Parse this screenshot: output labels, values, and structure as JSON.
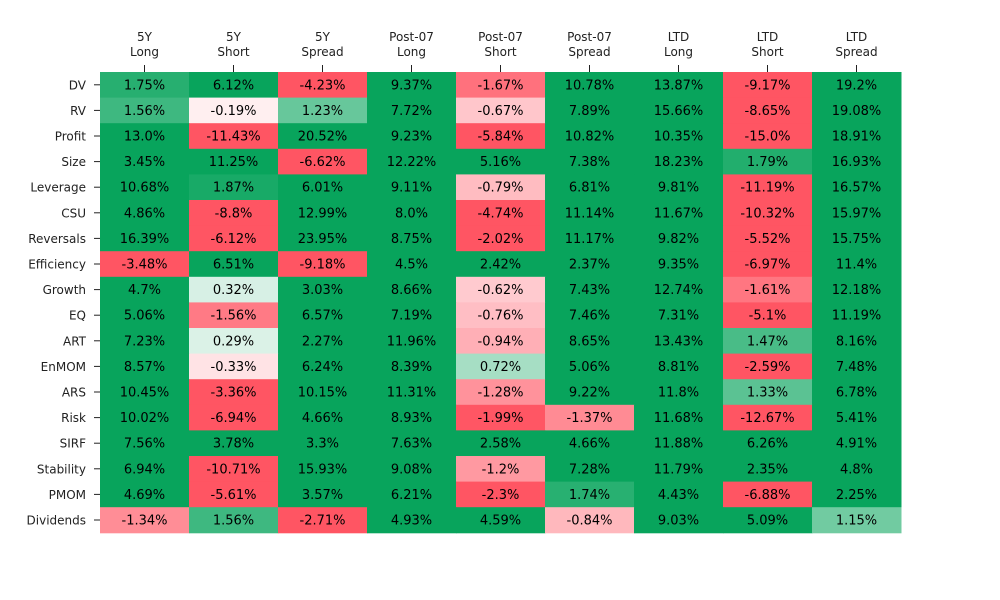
{
  "chart_data": {
    "type": "heatmap",
    "columns": [
      [
        "5Y",
        "Long"
      ],
      [
        "5Y",
        "Short"
      ],
      [
        "5Y",
        "Spread"
      ],
      [
        "Post-07",
        "Long"
      ],
      [
        "Post-07",
        "Short"
      ],
      [
        "Post-07",
        "Spread"
      ],
      [
        "LTD",
        "Long"
      ],
      [
        "LTD",
        "Short"
      ],
      [
        "LTD",
        "Spread"
      ]
    ],
    "rows": [
      "DV",
      "RV",
      "Profit",
      "Size",
      "Leverage",
      "CSU",
      "Reversals",
      "Efficiency",
      "Growth",
      "EQ",
      "ART",
      "EnMOM",
      "ARS",
      "Risk",
      "SIRF",
      "Stability",
      "PMOM",
      "Dividends"
    ],
    "values": [
      [
        1.75,
        6.12,
        -4.23,
        9.37,
        -1.67,
        10.78,
        13.87,
        -9.17,
        19.2
      ],
      [
        1.56,
        -0.19,
        1.23,
        7.72,
        -0.67,
        7.89,
        15.66,
        -8.65,
        19.08
      ],
      [
        13.0,
        -11.43,
        20.52,
        9.23,
        -5.84,
        10.82,
        10.35,
        -15.0,
        18.91
      ],
      [
        3.45,
        11.25,
        -6.62,
        12.22,
        5.16,
        7.38,
        18.23,
        1.79,
        16.93
      ],
      [
        10.68,
        1.87,
        6.01,
        9.11,
        -0.79,
        6.81,
        9.81,
        -11.19,
        16.57
      ],
      [
        4.86,
        -8.8,
        12.99,
        8.0,
        -4.74,
        11.14,
        11.67,
        -10.32,
        15.97
      ],
      [
        16.39,
        -6.12,
        23.95,
        8.75,
        -2.02,
        11.17,
        9.82,
        -5.52,
        15.75
      ],
      [
        -3.48,
        6.51,
        -9.18,
        4.5,
        2.42,
        2.37,
        9.35,
        -6.97,
        11.4
      ],
      [
        4.7,
        0.32,
        3.03,
        8.66,
        -0.62,
        7.43,
        12.74,
        -1.61,
        12.18
      ],
      [
        5.06,
        -1.56,
        6.57,
        7.19,
        -0.76,
        7.46,
        7.31,
        -5.1,
        11.19
      ],
      [
        7.23,
        0.29,
        2.27,
        11.96,
        -0.94,
        8.65,
        13.43,
        1.47,
        8.16
      ],
      [
        8.57,
        -0.33,
        6.24,
        8.39,
        0.72,
        5.06,
        8.81,
        -2.59,
        7.48
      ],
      [
        10.45,
        -3.36,
        10.15,
        11.31,
        -1.28,
        9.22,
        11.8,
        1.33,
        6.78
      ],
      [
        10.02,
        -6.94,
        4.66,
        8.93,
        -1.99,
        -1.37,
        11.68,
        -12.67,
        5.41
      ],
      [
        7.56,
        3.78,
        3.3,
        7.63,
        2.58,
        4.66,
        11.88,
        6.26,
        4.91
      ],
      [
        6.94,
        -10.71,
        15.93,
        9.08,
        -1.2,
        7.28,
        11.79,
        2.35,
        4.8
      ],
      [
        4.69,
        -5.61,
        3.57,
        6.21,
        -2.3,
        1.74,
        4.43,
        -6.88,
        2.25
      ],
      [
        -1.34,
        1.56,
        -2.71,
        4.93,
        4.59,
        -0.84,
        9.03,
        5.09,
        1.15
      ]
    ],
    "value_suffix": "%",
    "color_scale": {
      "negative": "#ff5563",
      "mid": "#ffffff",
      "positive": "#08a45c",
      "vmin": -2,
      "vmax": 2
    },
    "grid": false,
    "legend": "none"
  }
}
